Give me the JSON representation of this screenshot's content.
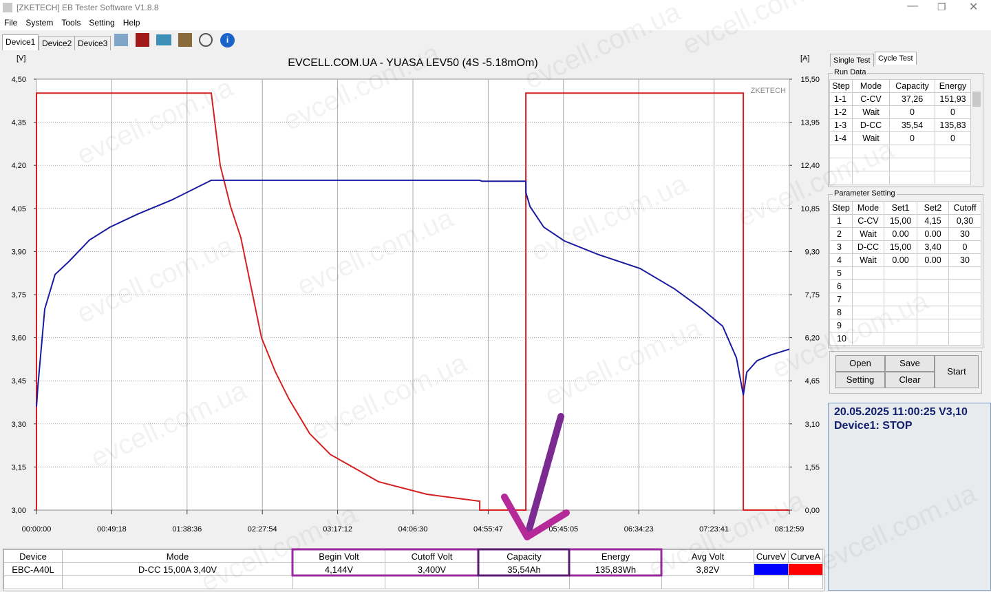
{
  "window": {
    "title": "[ZKETECH] EB Tester Software V1.8.8"
  },
  "menu": [
    "File",
    "System",
    "Tools",
    "Setting",
    "Help"
  ],
  "device_tabs": [
    "Device1",
    "Device2",
    "Device3"
  ],
  "watermark": "evcell.com.ua",
  "chart_data": {
    "type": "line",
    "title": "EVCELL.COM.UA - YUASA LEV50 (4S -5.18mOm)",
    "y_label": "[V]",
    "y2_label": "[A]",
    "brand": "ZKETECH",
    "xlim": [
      0,
      29579
    ],
    "xticks": [
      {
        "value": 0,
        "label": "00:00:00"
      },
      {
        "value": 2958,
        "label": "00:49:18"
      },
      {
        "value": 5916,
        "label": "01:38:36"
      },
      {
        "value": 8874,
        "label": "02:27:54"
      },
      {
        "value": 11832,
        "label": "03:17:12"
      },
      {
        "value": 14790,
        "label": "04:06:30"
      },
      {
        "value": 17747,
        "label": "04:55:47"
      },
      {
        "value": 20705,
        "label": "05:45:05"
      },
      {
        "value": 23663,
        "label": "06:34:23"
      },
      {
        "value": 26621,
        "label": "07:23:41"
      },
      {
        "value": 29579,
        "label": "08:12:59"
      }
    ],
    "ylim": [
      3.0,
      4.5
    ],
    "yticks": [
      {
        "value": 3.0,
        "label": "3,00"
      },
      {
        "value": 3.15,
        "label": "3,15"
      },
      {
        "value": 3.3,
        "label": "3,30"
      },
      {
        "value": 3.45,
        "label": "3,45"
      },
      {
        "value": 3.6,
        "label": "3,60"
      },
      {
        "value": 3.75,
        "label": "3,75"
      },
      {
        "value": 3.9,
        "label": "3,90"
      },
      {
        "value": 4.05,
        "label": "4,05"
      },
      {
        "value": 4.2,
        "label": "4,20"
      },
      {
        "value": 4.35,
        "label": "4,35"
      },
      {
        "value": 4.5,
        "label": "4,50"
      }
    ],
    "y2lim": [
      0,
      15.5
    ],
    "y2ticks": [
      {
        "value": 0,
        "label": "0,00"
      },
      {
        "value": 1.55,
        "label": "1,55"
      },
      {
        "value": 3.1,
        "label": "3,10"
      },
      {
        "value": 4.65,
        "label": "4,65"
      },
      {
        "value": 6.2,
        "label": "6,20"
      },
      {
        "value": 7.75,
        "label": "7,75"
      },
      {
        "value": 9.3,
        "label": "9,30"
      },
      {
        "value": 10.85,
        "label": "10,85"
      },
      {
        "value": 12.4,
        "label": "12,40"
      },
      {
        "value": 13.95,
        "label": "13,95"
      },
      {
        "value": 15.5,
        "label": "15,50"
      }
    ],
    "grid": true,
    "series": [
      {
        "name": "CurveV",
        "color": "#0000ff",
        "line_color": "#1a1aa0",
        "x": [
          0,
          54,
          324,
          730,
          1271,
          2082,
          2893,
          3975,
          5327,
          6868,
          17414,
          17495,
          19225,
          19230,
          19388,
          19928,
          20740,
          22092,
          23714,
          25066,
          26148,
          26959,
          27500,
          27770,
          27905,
          28311,
          28851,
          29579
        ],
        "values": [
          3.36,
          3.43,
          3.7,
          3.82,
          3.865,
          3.94,
          3.985,
          4.03,
          4.08,
          4.148,
          4.148,
          4.145,
          4.145,
          4.105,
          4.057,
          3.985,
          3.937,
          3.889,
          3.841,
          3.77,
          3.7,
          3.64,
          3.53,
          3.4,
          3.48,
          3.52,
          3.54,
          3.56
        ]
      },
      {
        "name": "CurveA",
        "color": "#ff0000",
        "line_color": "#d42020",
        "axis": "y2",
        "x": [
          0,
          0,
          6868,
          7220,
          7625,
          8031,
          8842,
          9383,
          9924,
          10735,
          11546,
          13439,
          15332,
          17414,
          17414,
          19225,
          19225,
          27770,
          27770,
          29579
        ],
        "values": [
          0,
          15,
          15,
          12.4,
          10.92,
          9.8,
          6.2,
          4.98,
          3.99,
          2.75,
          2.0,
          1.02,
          0.57,
          0.32,
          0,
          0,
          15,
          15,
          0,
          0
        ]
      }
    ]
  },
  "right_tabs": [
    "Single Test",
    "Cycle Test"
  ],
  "run_data": {
    "caption": "Run Data",
    "header": [
      "Step",
      "Mode",
      "Capacity",
      "Energy"
    ],
    "rows": [
      [
        "1-1",
        "C-CV",
        "37,26",
        "151,93"
      ],
      [
        "1-2",
        "Wait",
        "0",
        "0"
      ],
      [
        "1-3",
        "D-CC",
        "35,54",
        "135,83"
      ],
      [
        "1-4",
        "Wait",
        "0",
        "0"
      ]
    ]
  },
  "parameter_setting": {
    "caption": "Parameter Setting",
    "header": [
      "Step",
      "Mode",
      "Set1",
      "Set2",
      "Cutoff"
    ],
    "rows": [
      [
        "1",
        "C-CV",
        "15,00",
        "4,15",
        "0,30"
      ],
      [
        "2",
        "Wait",
        "0.00",
        "0.00",
        "30"
      ],
      [
        "3",
        "D-CC",
        "15,00",
        "3,40",
        "0"
      ],
      [
        "4",
        "Wait",
        "0.00",
        "0.00",
        "30"
      ],
      [
        "5"
      ],
      [
        "6"
      ],
      [
        "7"
      ],
      [
        "8"
      ],
      [
        "9"
      ],
      [
        "10"
      ]
    ]
  },
  "buttons": {
    "open": "Open",
    "save": "Save",
    "setting": "Setting",
    "clear": "Clear",
    "start": "Start"
  },
  "status": {
    "line1": "20.05.2025 11:00:25  V3,10",
    "line2": "Device1: STOP"
  },
  "summary": {
    "header": [
      "Device",
      "Mode",
      "Begin Volt",
      "Cutoff Volt",
      "Capacity",
      "Energy",
      "Avg Volt"
    ],
    "row": [
      "EBC-A40L",
      "D-CC 15,00A  3,40V",
      "4,144V",
      "3,400V",
      "35,54Ah",
      "135,83Wh",
      "3,82V"
    ]
  }
}
